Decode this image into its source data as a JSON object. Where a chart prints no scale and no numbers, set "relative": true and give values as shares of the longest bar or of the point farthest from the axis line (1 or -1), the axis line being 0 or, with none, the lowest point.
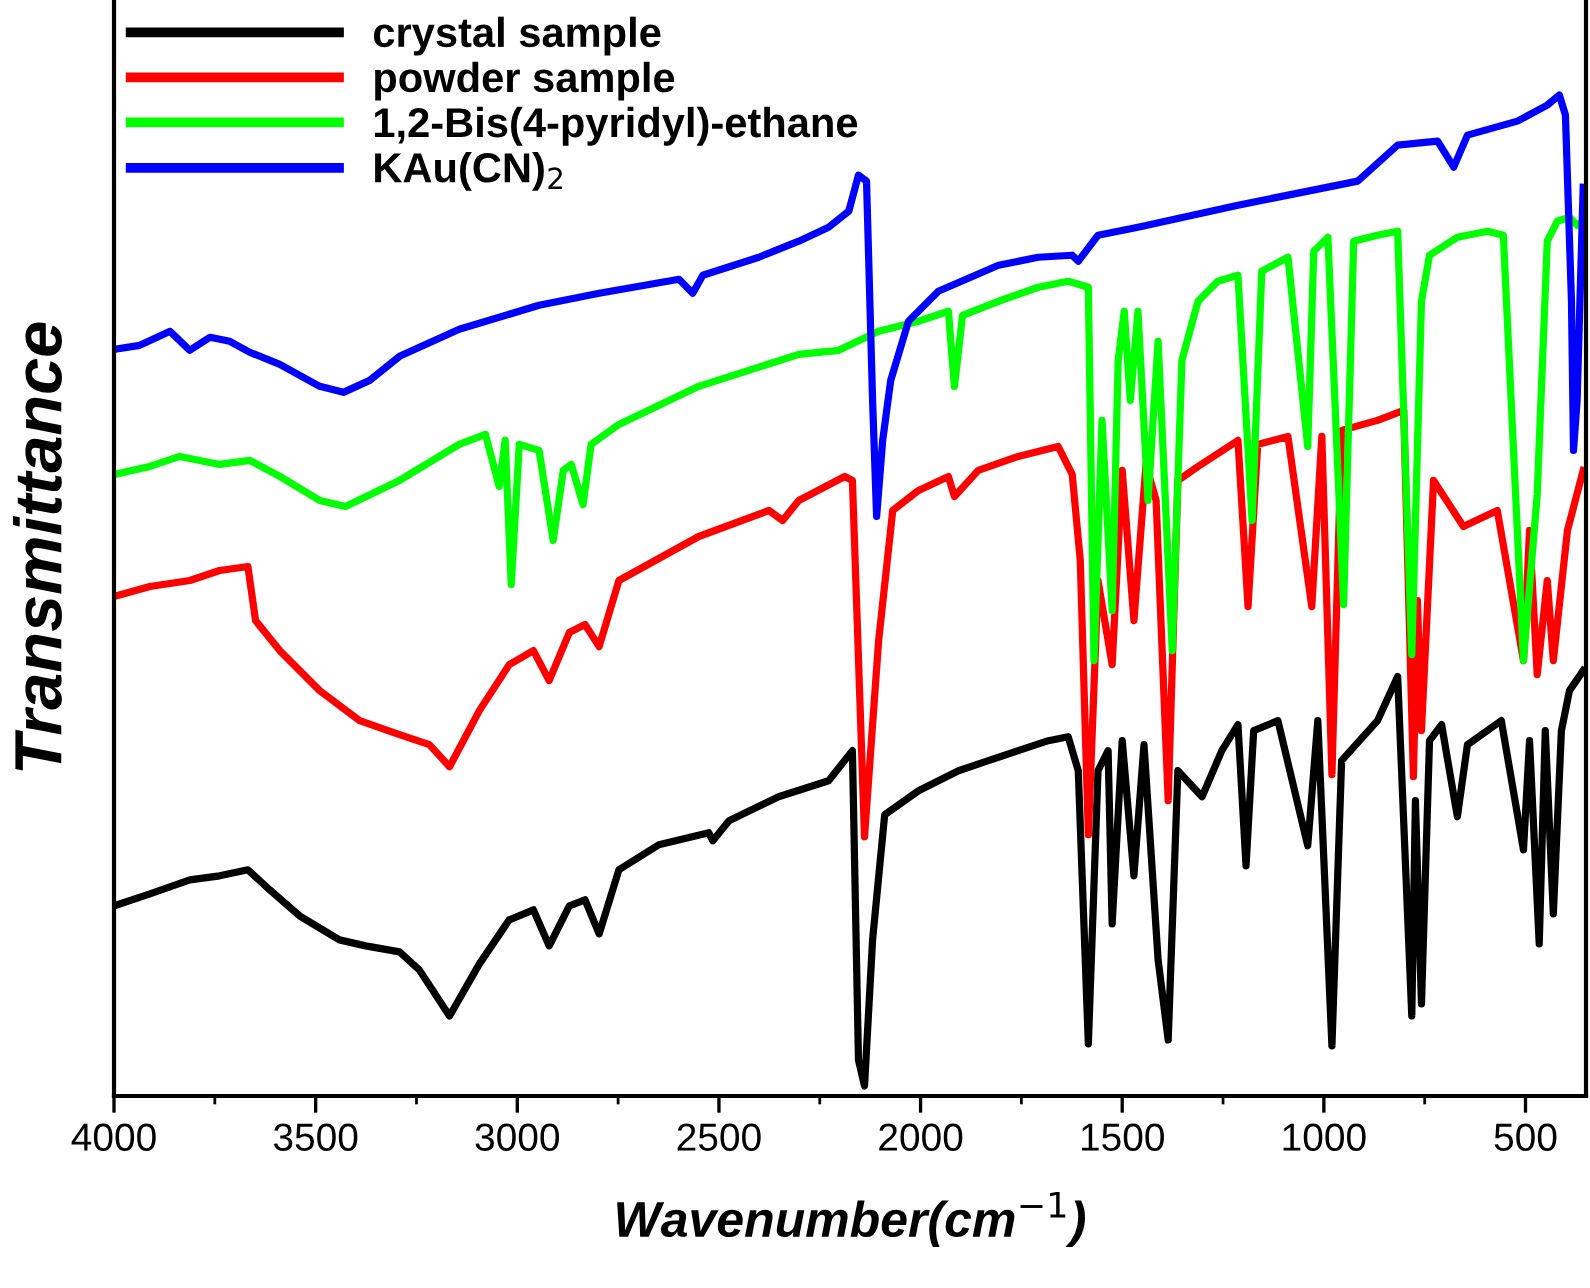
{
  "chart_data": {
    "type": "line",
    "relative": true,
    "xlabel": "Wavenumber(cm$^{−1}$)",
    "ylabel": "Transmittance",
    "xlim": [
      4000,
      350
    ],
    "xticks": [
      4000,
      3500,
      3000,
      2500,
      2000,
      1500,
      1000,
      500
    ],
    "legend": "top left",
    "grid": false,
    "marker": "none",
    "line_style": "solid",
    "series": [
      {
        "name": "crystal sample",
        "color": "#000000",
        "x": [
          4000,
          3911,
          3812,
          3738,
          3668,
          3614,
          3540,
          3441,
          3376,
          3292,
          3243,
          3168,
          3094,
          3020,
          2960,
          2921,
          2871,
          2832,
          2797,
          2748,
          2649,
          2525,
          2515,
          2475,
          2352,
          2228,
          2169,
          2154,
          2139,
          2119,
          2089,
          2005,
          1906,
          1832,
          1758,
          1683,
          1634,
          1609,
          1584,
          1560,
          1535,
          1525,
          1500,
          1471,
          1446,
          1411,
          1386,
          1362,
          1302,
          1253,
          1213,
          1193,
          1174,
          1114,
          1040,
          1015,
          980,
          956,
          867,
          817,
          782,
          773,
          758,
          738,
          708,
          669,
          644,
          560,
          505,
          490,
          466,
          451,
          431,
          411,
          391,
          357
        ],
        "values": [
          0.19,
          0.202,
          0.216,
          0.22,
          0.226,
          0.206,
          0.18,
          0.156,
          0.15,
          0.144,
          0.126,
          0.08,
          0.132,
          0.176,
          0.186,
          0.15,
          0.19,
          0.196,
          0.162,
          0.226,
          0.251,
          0.263,
          0.255,
          0.275,
          0.299,
          0.315,
          0.345,
          0.036,
          0.01,
          0.156,
          0.281,
          0.305,
          0.325,
          0.335,
          0.345,
          0.355,
          0.359,
          0.325,
          0.052,
          0.325,
          0.345,
          0.172,
          0.355,
          0.22,
          0.351,
          0.136,
          0.056,
          0.325,
          0.299,
          0.345,
          0.371,
          0.23,
          0.365,
          0.375,
          0.25,
          0.375,
          0.05,
          0.335,
          0.375,
          0.419,
          0.08,
          0.295,
          0.092,
          0.355,
          0.371,
          0.279,
          0.351,
          0.375,
          0.246,
          0.355,
          0.152,
          0.365,
          0.182,
          0.365,
          0.405,
          0.425
        ]
      },
      {
        "name": "powder sample",
        "color": "#ff0000",
        "x": [
          4000,
          3911,
          3812,
          3738,
          3668,
          3649,
          3589,
          3490,
          3391,
          3292,
          3218,
          3168,
          3094,
          3020,
          2960,
          2921,
          2871,
          2832,
          2797,
          2748,
          2550,
          2376,
          2342,
          2302,
          2188,
          2169,
          2139,
          2104,
          2069,
          2005,
          1931,
          1916,
          1857,
          1758,
          1659,
          1624,
          1604,
          1584,
          1560,
          1525,
          1500,
          1471,
          1441,
          1416,
          1386,
          1362,
          1312,
          1213,
          1188,
          1164,
          1089,
          1030,
          1005,
          980,
          956,
          867,
          802,
          778,
          768,
          758,
          728,
          654,
          570,
          505,
          490,
          471,
          446,
          431,
          396,
          357
        ],
        "values": [
          0.499,
          0.509,
          0.515,
          0.525,
          0.529,
          0.475,
          0.445,
          0.405,
          0.375,
          0.361,
          0.351,
          0.329,
          0.385,
          0.431,
          0.445,
          0.415,
          0.463,
          0.471,
          0.449,
          0.515,
          0.559,
          0.585,
          0.575,
          0.595,
          0.619,
          0.615,
          0.259,
          0.455,
          0.585,
          0.605,
          0.619,
          0.599,
          0.625,
          0.639,
          0.649,
          0.621,
          0.535,
          0.261,
          0.515,
          0.431,
          0.625,
          0.475,
          0.631,
          0.595,
          0.295,
          0.615,
          0.629,
          0.655,
          0.489,
          0.651,
          0.659,
          0.489,
          0.659,
          0.321,
          0.665,
          0.675,
          0.685,
          0.319,
          0.495,
          0.365,
          0.615,
          0.569,
          0.585,
          0.435,
          0.565,
          0.421,
          0.515,
          0.435,
          0.565,
          0.625
        ]
      },
      {
        "name": "1,2-Bis(4-pyridyl)-ethane",
        "color": "#00ff00",
        "x": [
          4000,
          3911,
          3837,
          3738,
          3663,
          3589,
          3490,
          3426,
          3292,
          3144,
          3079,
          3045,
          3030,
          3015,
          2995,
          2946,
          2911,
          2886,
          2866,
          2837,
          2817,
          2748,
          2550,
          2302,
          2203,
          2104,
          2005,
          1931,
          1916,
          1896,
          1807,
          1708,
          1634,
          1584,
          1570,
          1550,
          1525,
          1510,
          1495,
          1480,
          1461,
          1436,
          1411,
          1376,
          1352,
          1312,
          1263,
          1213,
          1178,
          1154,
          1089,
          1040,
          1025,
          990,
          951,
          926,
          867,
          817,
          782,
          758,
          738,
          669,
          594,
          555,
          505,
          471,
          446,
          421,
          391,
          372,
          357
        ],
        "values": [
          0.621,
          0.629,
          0.639,
          0.631,
          0.635,
          0.619,
          0.595,
          0.589,
          0.615,
          0.651,
          0.661,
          0.609,
          0.655,
          0.511,
          0.651,
          0.645,
          0.555,
          0.625,
          0.631,
          0.591,
          0.651,
          0.671,
          0.709,
          0.741,
          0.745,
          0.764,
          0.774,
          0.784,
          0.709,
          0.78,
          0.794,
          0.808,
          0.814,
          0.808,
          0.435,
          0.675,
          0.485,
          0.735,
          0.784,
          0.695,
          0.784,
          0.595,
          0.754,
          0.445,
          0.735,
          0.794,
          0.814,
          0.82,
          0.575,
          0.824,
          0.838,
          0.649,
          0.844,
          0.858,
          0.491,
          0.854,
          0.86,
          0.864,
          0.441,
          0.794,
          0.84,
          0.858,
          0.864,
          0.86,
          0.435,
          0.601,
          0.854,
          0.874,
          0.878,
          0.87,
          0.874
        ]
      },
      {
        "name": "KAu(CN)$_{2}$",
        "color": "#0000ff",
        "x": [
          4000,
          3936,
          3861,
          3812,
          3762,
          3713,
          3663,
          3589,
          3490,
          3431,
          3366,
          3292,
          3144,
          2946,
          2797,
          2599,
          2565,
          2540,
          2401,
          2302,
          2228,
          2178,
          2154,
          2134,
          2119,
          2109,
          2094,
          2074,
          2030,
          1956,
          1807,
          1708,
          1624,
          1609,
          1560,
          1461,
          1213,
          916,
          817,
          718,
          678,
          644,
          520,
          446,
          416,
          401,
          386,
          381,
          372,
          357
        ],
        "values": [
          0.746,
          0.75,
          0.764,
          0.745,
          0.758,
          0.754,
          0.743,
          0.731,
          0.709,
          0.703,
          0.715,
          0.739,
          0.766,
          0.79,
          0.802,
          0.816,
          0.802,
          0.82,
          0.838,
          0.854,
          0.868,
          0.884,
          0.92,
          0.914,
          0.695,
          0.579,
          0.655,
          0.715,
          0.774,
          0.804,
          0.83,
          0.838,
          0.84,
          0.834,
          0.86,
          0.868,
          0.89,
          0.914,
          0.95,
          0.954,
          0.928,
          0.96,
          0.974,
          0.99,
          1.0,
          0.98,
          0.794,
          0.645,
          0.695,
          0.908
        ]
      }
    ]
  }
}
